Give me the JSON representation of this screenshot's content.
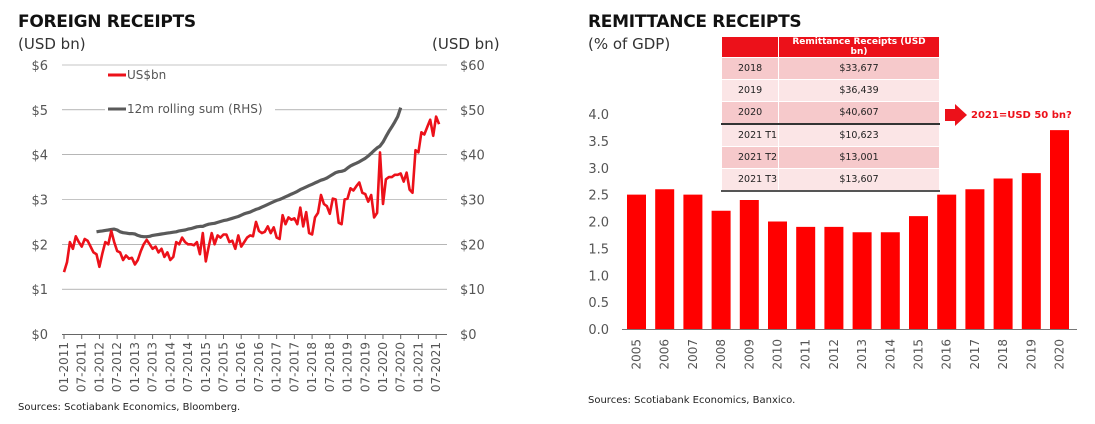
{
  "left": {
    "title": "FOREIGN RECEIPTS",
    "unit_left": "(USD bn)",
    "unit_right": "(USD bn)",
    "source": "Sources: Scotiabank Economics, Bloomberg.",
    "legend": [
      {
        "label": "US$bn",
        "color": "#ec111a"
      },
      {
        "label": "12m rolling sum (RHS)",
        "color": "#5a5a5a"
      }
    ]
  },
  "right": {
    "title": "REMITTANCE RECEIPTS",
    "unit": "(% of GDP)",
    "source": "Sources: Scotiabank Economics, Banxico.",
    "table": {
      "header": [
        "",
        "Remittance Receipts (USD bn)"
      ],
      "rows": [
        [
          "2018",
          "$33,677"
        ],
        [
          "2019",
          "$36,439"
        ],
        [
          "2020",
          "$40,607"
        ],
        [
          "2021 T1",
          "$10,623"
        ],
        [
          "2021 T2",
          "$13,001"
        ],
        [
          "2021 T3",
          "$13,607"
        ]
      ]
    },
    "annotation": "2021=USD 50 bn?"
  },
  "chart_data": [
    {
      "type": "line",
      "title": "FOREIGN RECEIPTS",
      "ylabel": "(USD bn)",
      "y2label": "(USD bn)",
      "ylim": [
        0,
        6
      ],
      "y2lim": [
        0,
        60
      ],
      "yticks": [
        "$0",
        "$1",
        "$2",
        "$3",
        "$4",
        "$5",
        "$6"
      ],
      "y2ticks": [
        "$0",
        "$10",
        "$20",
        "$30",
        "$40",
        "$50",
        "$60"
      ],
      "xticks": [
        "01-2011",
        "07-2011",
        "01-2012",
        "07-2012",
        "01-2013",
        "07-2013",
        "01-2014",
        "07-2014",
        "01-2015",
        "07-2015",
        "01-2016",
        "07-2016",
        "01-2017",
        "07-2017",
        "01-2018",
        "07-2018",
        "01-2019",
        "07-2019",
        "01-2020",
        "07-2020",
        "01-2021",
        "07-2021"
      ],
      "grid": true,
      "legend_position": "top-left",
      "series": [
        {
          "name": "US$bn",
          "axis": "left",
          "start": "01-2011",
          "values": [
            1.38,
            1.6,
            2.05,
            1.9,
            2.18,
            2.05,
            1.95,
            2.12,
            2.08,
            1.95,
            1.82,
            1.78,
            1.5,
            1.8,
            2.05,
            2.0,
            2.3,
            2.05,
            1.85,
            1.82,
            1.65,
            1.75,
            1.68,
            1.7,
            1.55,
            1.65,
            1.85,
            2.0,
            2.1,
            2.0,
            1.9,
            1.95,
            1.82,
            1.9,
            1.72,
            1.82,
            1.65,
            1.72,
            2.05,
            2.0,
            2.15,
            2.05,
            2.0,
            2.0,
            1.98,
            2.05,
            1.78,
            2.25,
            1.62,
            1.95,
            2.25,
            2.0,
            2.2,
            2.15,
            2.22,
            2.22,
            2.05,
            2.08,
            1.9,
            2.2,
            1.95,
            2.05,
            2.15,
            2.2,
            2.18,
            2.5,
            2.3,
            2.25,
            2.28,
            2.4,
            2.25,
            2.38,
            2.15,
            2.12,
            2.65,
            2.45,
            2.6,
            2.55,
            2.58,
            2.45,
            2.82,
            2.4,
            2.72,
            2.25,
            2.22,
            2.6,
            2.7,
            3.1,
            2.9,
            2.85,
            2.68,
            3.02,
            3.0,
            2.48,
            2.45,
            3.0,
            3.02,
            3.25,
            3.2,
            3.3,
            3.38,
            3.15,
            3.12,
            2.95,
            3.1,
            2.6,
            2.7,
            4.05,
            2.9,
            3.45,
            3.5,
            3.5,
            3.55,
            3.55,
            3.58,
            3.4,
            3.6,
            3.22,
            3.15,
            4.1,
            4.05,
            4.5,
            4.45,
            4.62,
            4.78,
            4.42,
            4.85,
            4.68
          ],
          "color": "#ec111a"
        },
        {
          "name": "12m rolling sum (RHS)",
          "axis": "right",
          "start": "12-2011",
          "values": [
            22.8,
            22.9,
            23.0,
            23.1,
            23.2,
            23.3,
            23.4,
            23.2,
            22.8,
            22.6,
            22.5,
            22.4,
            22.4,
            22.3,
            22.0,
            21.8,
            21.7,
            21.7,
            21.8,
            22.0,
            22.1,
            22.2,
            22.3,
            22.4,
            22.5,
            22.6,
            22.7,
            22.8,
            23.0,
            23.1,
            23.2,
            23.4,
            23.5,
            23.7,
            23.9,
            24.0,
            24.0,
            24.3,
            24.5,
            24.6,
            24.7,
            24.9,
            25.1,
            25.3,
            25.4,
            25.6,
            25.8,
            26.0,
            26.2,
            26.5,
            26.8,
            27.0,
            27.2,
            27.5,
            27.8,
            28.0,
            28.3,
            28.6,
            28.9,
            29.2,
            29.5,
            29.8,
            30.0,
            30.3,
            30.6,
            30.9,
            31.2,
            31.5,
            31.8,
            32.2,
            32.5,
            32.8,
            33.1,
            33.4,
            33.7,
            34.0,
            34.3,
            34.5,
            34.8,
            35.2,
            35.6,
            36.0,
            36.2,
            36.3,
            36.5,
            37.0,
            37.5,
            37.8,
            38.1,
            38.4,
            38.8,
            39.2,
            39.7,
            40.3,
            40.9,
            41.5,
            41.9,
            42.8,
            44.0,
            45.2,
            46.2,
            47.3,
            48.5,
            50.5
          ],
          "color": "#5a5a5a"
        }
      ]
    },
    {
      "type": "bar",
      "title": "REMITTANCE RECEIPTS",
      "ylabel": "(% of GDP)",
      "categories": [
        "2005",
        "2006",
        "2007",
        "2008",
        "2009",
        "2010",
        "2011",
        "2012",
        "2013",
        "2014",
        "2015",
        "2016",
        "2017",
        "2018",
        "2019",
        "2020"
      ],
      "values": [
        2.5,
        2.6,
        2.5,
        2.2,
        2.4,
        2.0,
        1.9,
        1.9,
        1.8,
        1.8,
        2.1,
        2.5,
        2.6,
        2.8,
        2.9,
        3.7
      ],
      "ylim": [
        0,
        4.0
      ],
      "yticks": [
        "0.0",
        "0.5",
        "1.0",
        "1.5",
        "2.0",
        "2.5",
        "3.0",
        "3.5",
        "4.0"
      ],
      "grid": false,
      "color": "#ff0000"
    }
  ]
}
